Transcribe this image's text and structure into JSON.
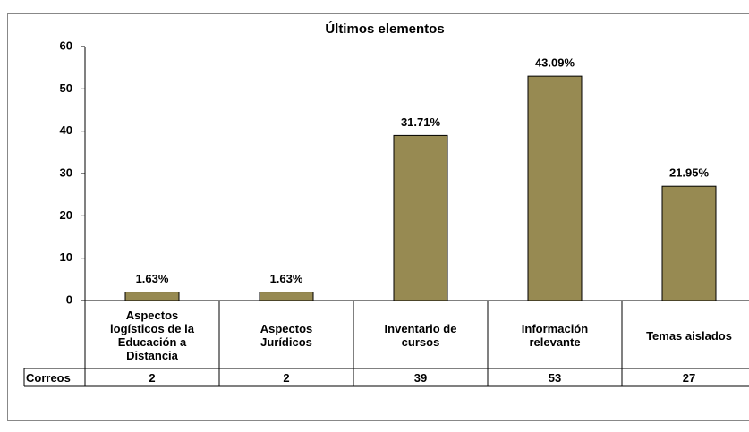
{
  "chart_data": {
    "type": "bar",
    "title": "Últimos elementos",
    "categories": [
      "Aspectos logísticos de la Educación a Distancia",
      "Aspectos Jurídicos",
      "Inventario de cursos",
      "Información relevante",
      "Temas aislados"
    ],
    "series": [
      {
        "name": "Correos",
        "color": "#978a52",
        "values": [
          2,
          2,
          39,
          53,
          27
        ]
      }
    ],
    "percent_labels": [
      "1.63%",
      "1.63%",
      "31.71%",
      "43.09%",
      "21.95%"
    ],
    "ylim": [
      0,
      60
    ],
    "yticks": [
      0,
      10,
      20,
      30,
      40,
      50,
      60
    ],
    "data_table": true
  }
}
